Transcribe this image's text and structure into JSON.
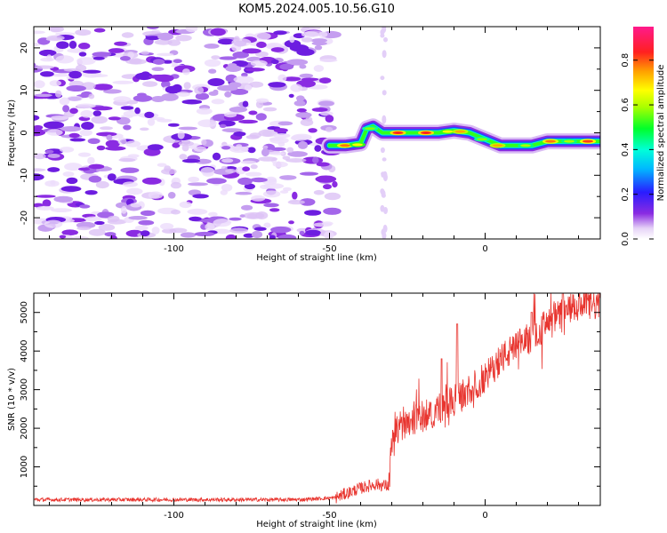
{
  "title": "KOM5.2024.005.10.56.G10",
  "chart_data": [
    {
      "type": "heatmap",
      "xlabel": "Height of straight line (km)",
      "ylabel": "Frequency (Hz)",
      "xlim": [
        -145,
        37
      ],
      "ylim": [
        -25,
        25
      ],
      "x_ticks": [
        -100,
        -50,
        0
      ],
      "y_ticks": [
        -20,
        -10,
        0,
        10,
        20
      ],
      "grid": false,
      "colorbar": {
        "label": "Normalized spectral amplitude",
        "range": [
          0,
          0.95
        ],
        "ticks": [
          0.0,
          0.2,
          0.4,
          0.6,
          0.8
        ],
        "colormap": "rainbow (white-violet-blue-cyan-green-yellow-orange-red-magenta)"
      },
      "noise_region_x": [
        -145,
        -48
      ],
      "signal_track": [
        {
          "x": -50,
          "y": -3
        },
        {
          "x": -45,
          "y": -3
        },
        {
          "x": -40,
          "y": -2.5
        },
        {
          "x": -38,
          "y": 1
        },
        {
          "x": -36,
          "y": 1.5
        },
        {
          "x": -33,
          "y": 0
        },
        {
          "x": -25,
          "y": 0
        },
        {
          "x": -20,
          "y": 0
        },
        {
          "x": -15,
          "y": 0
        },
        {
          "x": -10,
          "y": 0.5
        },
        {
          "x": -5,
          "y": 0
        },
        {
          "x": 0,
          "y": -1.5
        },
        {
          "x": 5,
          "y": -3
        },
        {
          "x": 10,
          "y": -3
        },
        {
          "x": 15,
          "y": -3
        },
        {
          "x": 20,
          "y": -2
        },
        {
          "x": 25,
          "y": -2
        },
        {
          "x": 30,
          "y": -2
        },
        {
          "x": 37,
          "y": -2
        }
      ],
      "track_peak_amplitude": 0.9
    },
    {
      "type": "line",
      "xlabel": "Height of straight line (km)",
      "ylabel": "SNR (10 * v/v)",
      "xlim": [
        -145,
        37
      ],
      "ylim": [
        0,
        5500
      ],
      "x_ticks": [
        -100,
        -50,
        0
      ],
      "y_ticks": [
        1000,
        2000,
        3000,
        4000,
        5000
      ],
      "grid": false,
      "series_color": "#e8352f",
      "envelope": [
        {
          "x": -145,
          "y": 150
        },
        {
          "x": -60,
          "y": 150
        },
        {
          "x": -48,
          "y": 200
        },
        {
          "x": -45,
          "y": 300
        },
        {
          "x": -40,
          "y": 450
        },
        {
          "x": -35,
          "y": 550
        },
        {
          "x": -31,
          "y": 500
        },
        {
          "x": -30,
          "y": 1500
        },
        {
          "x": -28,
          "y": 2000
        },
        {
          "x": -25,
          "y": 2200
        },
        {
          "x": -20,
          "y": 2300
        },
        {
          "x": -15,
          "y": 2500
        },
        {
          "x": -10,
          "y": 2700
        },
        {
          "x": -5,
          "y": 3000
        },
        {
          "x": 0,
          "y": 3300
        },
        {
          "x": 5,
          "y": 3800
        },
        {
          "x": 10,
          "y": 4100
        },
        {
          "x": 15,
          "y": 4400
        },
        {
          "x": 20,
          "y": 4700
        },
        {
          "x": 25,
          "y": 5000
        },
        {
          "x": 30,
          "y": 5150
        },
        {
          "x": 37,
          "y": 5200
        }
      ],
      "peaks": [
        {
          "x": -14,
          "y": 3800
        },
        {
          "x": -9,
          "y": 4700
        },
        {
          "x": -6,
          "y": 3100
        },
        {
          "x": 15,
          "y": 5000
        },
        {
          "x": 25,
          "y": 5500
        }
      ]
    }
  ]
}
